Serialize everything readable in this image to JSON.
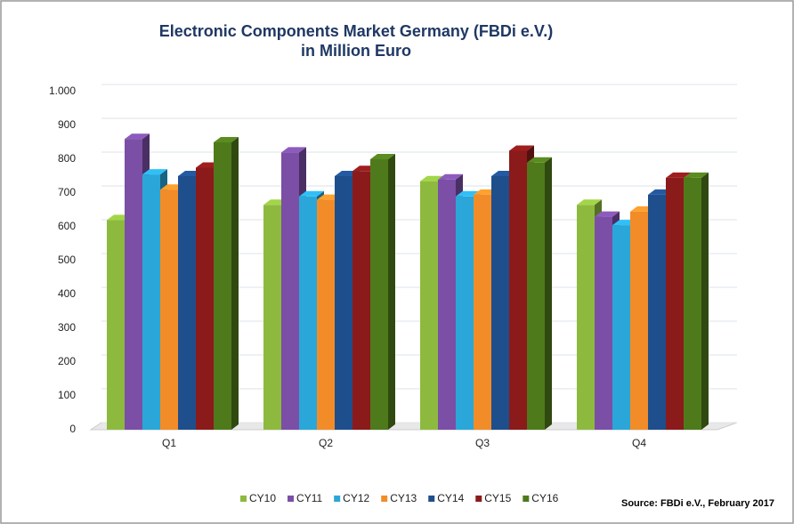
{
  "chart_data": {
    "type": "bar3d",
    "title": "Electronic Components Market Germany (FBDi e.V.)",
    "subtitle": "in Million Euro",
    "categories": [
      "Q1",
      "Q2",
      "Q3",
      "Q4"
    ],
    "series": [
      {
        "name": "CY10",
        "color": "#8dba3e",
        "values": [
          620,
          665,
          735,
          665
        ]
      },
      {
        "name": "CY11",
        "color": "#7b4fa6",
        "values": [
          860,
          820,
          740,
          630
        ]
      },
      {
        "name": "CY12",
        "color": "#2aa7d8",
        "values": [
          755,
          690,
          690,
          605
        ]
      },
      {
        "name": "CY13",
        "color": "#f28c28",
        "values": [
          710,
          680,
          695,
          645
        ]
      },
      {
        "name": "CY14",
        "color": "#1f4e8c",
        "values": [
          750,
          750,
          750,
          695
        ]
      },
      {
        "name": "CY15",
        "color": "#8b1a1a",
        "values": [
          775,
          765,
          825,
          745
        ]
      },
      {
        "name": "CY16",
        "color": "#4f7a1c",
        "values": [
          850,
          800,
          790,
          745
        ]
      }
    ],
    "ylim": [
      0,
      1000
    ],
    "yticks": [
      0,
      100,
      200,
      300,
      400,
      500,
      600,
      700,
      800,
      900,
      {
        "value": 1000,
        "label": "1.000"
      }
    ],
    "grid": true,
    "legend": "bottom",
    "annotation": "Source: FBDi e.V., February 2017"
  }
}
